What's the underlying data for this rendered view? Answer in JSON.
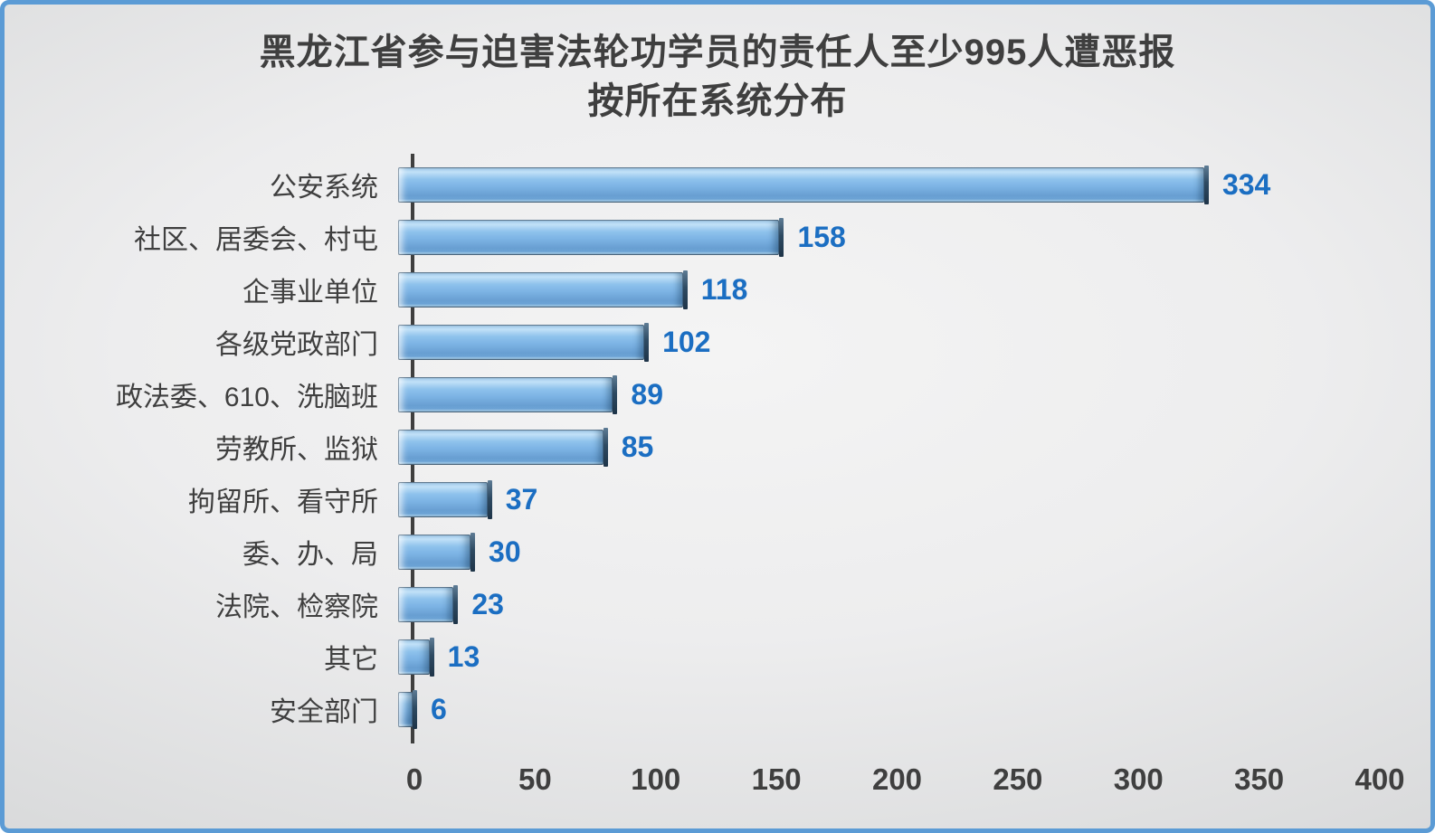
{
  "frame": {
    "border_color": "#5B9BD5",
    "background_center": "#F4F4F4",
    "background_edge": "#C7C8CA"
  },
  "title": {
    "line1": "黑龙江省参与迫害法轮功学员的责任人至少995人遭恶报",
    "line2": "按所在系统分布"
  },
  "chart_data": {
    "type": "bar",
    "orientation": "horizontal",
    "title": "黑龙江省参与迫害法轮功学员的责任人至少995人遭恶报",
    "subtitle": "按所在系统分布",
    "categories": [
      "公安系统",
      "社区、居委会、村屯",
      "企事业单位",
      "各级党政部门",
      "政法委、610、洗脑班",
      "劳教所、监狱",
      "拘留所、看守所",
      "委、办、局",
      "法院、检察院",
      "其它",
      "安全部门"
    ],
    "values": [
      334,
      158,
      118,
      102,
      89,
      85,
      37,
      30,
      23,
      13,
      6
    ],
    "xlabel": "",
    "ylabel": "",
    "xlim": [
      0,
      400
    ],
    "x_ticks": [
      0,
      50,
      100,
      150,
      200,
      250,
      300,
      350,
      400
    ],
    "grid": false,
    "legend": false,
    "data_labels": true,
    "bar_color": "#79B2E2",
    "bar_highlight": "#C2E1F8",
    "bar_shadow": "#44617C",
    "value_label_color": "#1B6EC2",
    "axis_color": "#3F3F3F",
    "text_color": "#3F3F3F"
  }
}
